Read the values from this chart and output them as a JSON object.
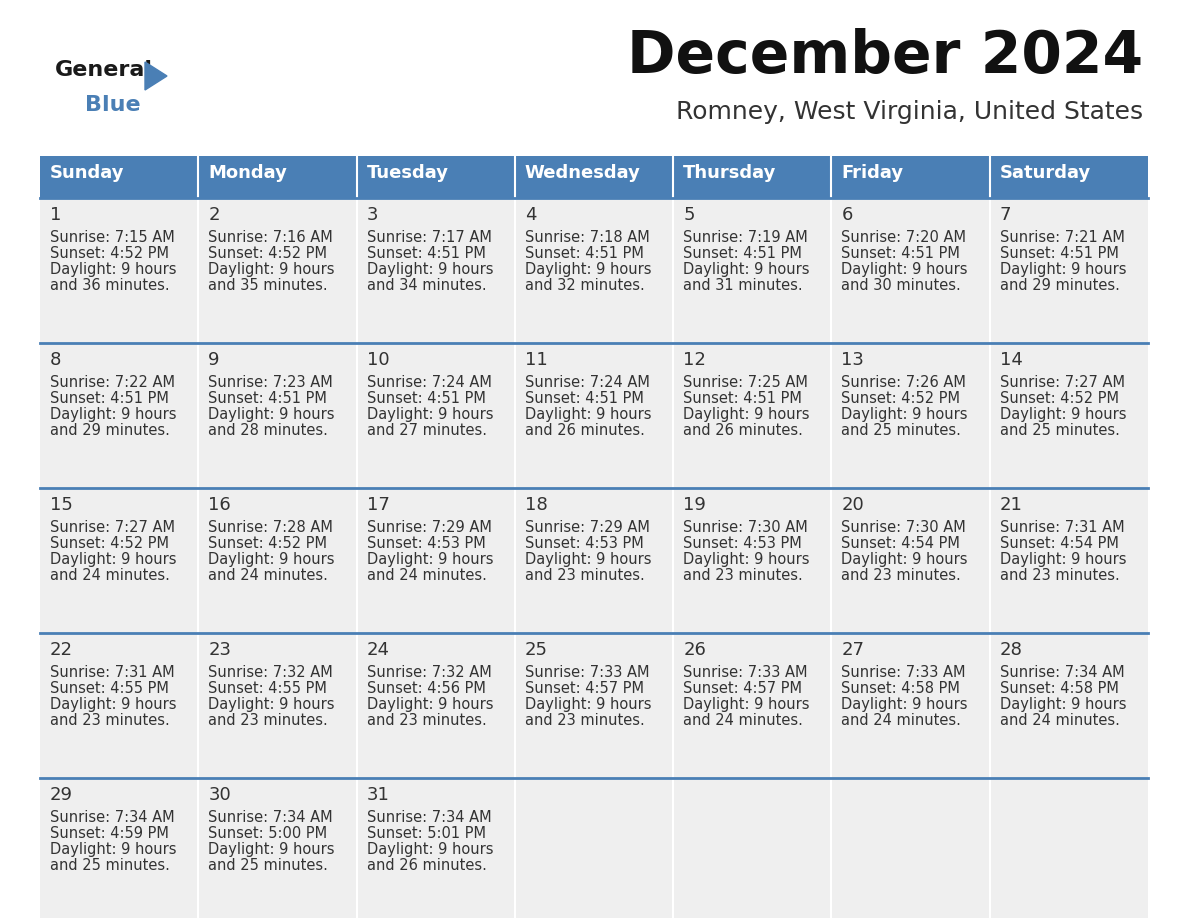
{
  "title": "December 2024",
  "subtitle": "Romney, West Virginia, United States",
  "header_color": "#4a7fb5",
  "header_text_color": "#ffffff",
  "day_names": [
    "Sunday",
    "Monday",
    "Tuesday",
    "Wednesday",
    "Thursday",
    "Friday",
    "Saturday"
  ],
  "background_color": "#ffffff",
  "cell_bg_color": "#efefef",
  "row_line_color": "#4a7fb5",
  "text_color": "#333333",
  "days": [
    {
      "day": 1,
      "col": 0,
      "row": 0,
      "sunrise": "7:15 AM",
      "sunset": "4:52 PM",
      "daylight_h": "9 hours",
      "daylight_m": "36 minutes."
    },
    {
      "day": 2,
      "col": 1,
      "row": 0,
      "sunrise": "7:16 AM",
      "sunset": "4:52 PM",
      "daylight_h": "9 hours",
      "daylight_m": "35 minutes."
    },
    {
      "day": 3,
      "col": 2,
      "row": 0,
      "sunrise": "7:17 AM",
      "sunset": "4:51 PM",
      "daylight_h": "9 hours",
      "daylight_m": "34 minutes."
    },
    {
      "day": 4,
      "col": 3,
      "row": 0,
      "sunrise": "7:18 AM",
      "sunset": "4:51 PM",
      "daylight_h": "9 hours",
      "daylight_m": "32 minutes."
    },
    {
      "day": 5,
      "col": 4,
      "row": 0,
      "sunrise": "7:19 AM",
      "sunset": "4:51 PM",
      "daylight_h": "9 hours",
      "daylight_m": "31 minutes."
    },
    {
      "day": 6,
      "col": 5,
      "row": 0,
      "sunrise": "7:20 AM",
      "sunset": "4:51 PM",
      "daylight_h": "9 hours",
      "daylight_m": "30 minutes."
    },
    {
      "day": 7,
      "col": 6,
      "row": 0,
      "sunrise": "7:21 AM",
      "sunset": "4:51 PM",
      "daylight_h": "9 hours",
      "daylight_m": "29 minutes."
    },
    {
      "day": 8,
      "col": 0,
      "row": 1,
      "sunrise": "7:22 AM",
      "sunset": "4:51 PM",
      "daylight_h": "9 hours",
      "daylight_m": "29 minutes."
    },
    {
      "day": 9,
      "col": 1,
      "row": 1,
      "sunrise": "7:23 AM",
      "sunset": "4:51 PM",
      "daylight_h": "9 hours",
      "daylight_m": "28 minutes."
    },
    {
      "day": 10,
      "col": 2,
      "row": 1,
      "sunrise": "7:24 AM",
      "sunset": "4:51 PM",
      "daylight_h": "9 hours",
      "daylight_m": "27 minutes."
    },
    {
      "day": 11,
      "col": 3,
      "row": 1,
      "sunrise": "7:24 AM",
      "sunset": "4:51 PM",
      "daylight_h": "9 hours",
      "daylight_m": "26 minutes."
    },
    {
      "day": 12,
      "col": 4,
      "row": 1,
      "sunrise": "7:25 AM",
      "sunset": "4:51 PM",
      "daylight_h": "9 hours",
      "daylight_m": "26 minutes."
    },
    {
      "day": 13,
      "col": 5,
      "row": 1,
      "sunrise": "7:26 AM",
      "sunset": "4:52 PM",
      "daylight_h": "9 hours",
      "daylight_m": "25 minutes."
    },
    {
      "day": 14,
      "col": 6,
      "row": 1,
      "sunrise": "7:27 AM",
      "sunset": "4:52 PM",
      "daylight_h": "9 hours",
      "daylight_m": "25 minutes."
    },
    {
      "day": 15,
      "col": 0,
      "row": 2,
      "sunrise": "7:27 AM",
      "sunset": "4:52 PM",
      "daylight_h": "9 hours",
      "daylight_m": "24 minutes."
    },
    {
      "day": 16,
      "col": 1,
      "row": 2,
      "sunrise": "7:28 AM",
      "sunset": "4:52 PM",
      "daylight_h": "9 hours",
      "daylight_m": "24 minutes."
    },
    {
      "day": 17,
      "col": 2,
      "row": 2,
      "sunrise": "7:29 AM",
      "sunset": "4:53 PM",
      "daylight_h": "9 hours",
      "daylight_m": "24 minutes."
    },
    {
      "day": 18,
      "col": 3,
      "row": 2,
      "sunrise": "7:29 AM",
      "sunset": "4:53 PM",
      "daylight_h": "9 hours",
      "daylight_m": "23 minutes."
    },
    {
      "day": 19,
      "col": 4,
      "row": 2,
      "sunrise": "7:30 AM",
      "sunset": "4:53 PM",
      "daylight_h": "9 hours",
      "daylight_m": "23 minutes."
    },
    {
      "day": 20,
      "col": 5,
      "row": 2,
      "sunrise": "7:30 AM",
      "sunset": "4:54 PM",
      "daylight_h": "9 hours",
      "daylight_m": "23 minutes."
    },
    {
      "day": 21,
      "col": 6,
      "row": 2,
      "sunrise": "7:31 AM",
      "sunset": "4:54 PM",
      "daylight_h": "9 hours",
      "daylight_m": "23 minutes."
    },
    {
      "day": 22,
      "col": 0,
      "row": 3,
      "sunrise": "7:31 AM",
      "sunset": "4:55 PM",
      "daylight_h": "9 hours",
      "daylight_m": "23 minutes."
    },
    {
      "day": 23,
      "col": 1,
      "row": 3,
      "sunrise": "7:32 AM",
      "sunset": "4:55 PM",
      "daylight_h": "9 hours",
      "daylight_m": "23 minutes."
    },
    {
      "day": 24,
      "col": 2,
      "row": 3,
      "sunrise": "7:32 AM",
      "sunset": "4:56 PM",
      "daylight_h": "9 hours",
      "daylight_m": "23 minutes."
    },
    {
      "day": 25,
      "col": 3,
      "row": 3,
      "sunrise": "7:33 AM",
      "sunset": "4:57 PM",
      "daylight_h": "9 hours",
      "daylight_m": "23 minutes."
    },
    {
      "day": 26,
      "col": 4,
      "row": 3,
      "sunrise": "7:33 AM",
      "sunset": "4:57 PM",
      "daylight_h": "9 hours",
      "daylight_m": "24 minutes."
    },
    {
      "day": 27,
      "col": 5,
      "row": 3,
      "sunrise": "7:33 AM",
      "sunset": "4:58 PM",
      "daylight_h": "9 hours",
      "daylight_m": "24 minutes."
    },
    {
      "day": 28,
      "col": 6,
      "row": 3,
      "sunrise": "7:34 AM",
      "sunset": "4:58 PM",
      "daylight_h": "9 hours",
      "daylight_m": "24 minutes."
    },
    {
      "day": 29,
      "col": 0,
      "row": 4,
      "sunrise": "7:34 AM",
      "sunset": "4:59 PM",
      "daylight_h": "9 hours",
      "daylight_m": "25 minutes."
    },
    {
      "day": 30,
      "col": 1,
      "row": 4,
      "sunrise": "7:34 AM",
      "sunset": "5:00 PM",
      "daylight_h": "9 hours",
      "daylight_m": "25 minutes."
    },
    {
      "day": 31,
      "col": 2,
      "row": 4,
      "sunrise": "7:34 AM",
      "sunset": "5:01 PM",
      "daylight_h": "9 hours",
      "daylight_m": "26 minutes."
    }
  ],
  "logo_color_general": "#1a1a1a",
  "logo_color_blue": "#4a7fb5",
  "title_fontsize": 42,
  "subtitle_fontsize": 18,
  "header_fontsize": 13,
  "day_num_fontsize": 13,
  "cell_fontsize": 10.5
}
